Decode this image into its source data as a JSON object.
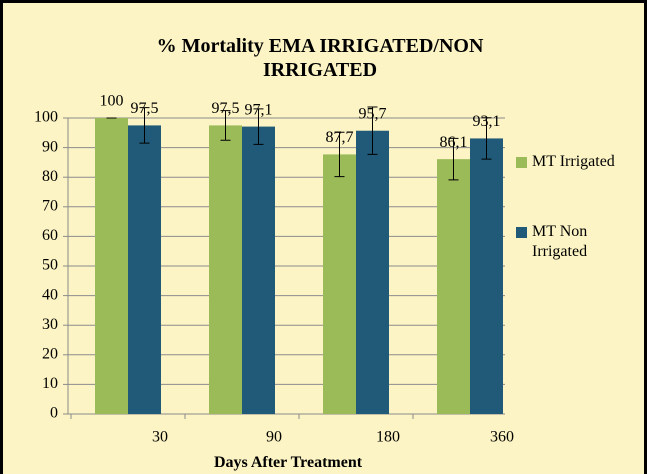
{
  "chart_data": {
    "type": "bar",
    "title": "% Mortality  EMA IRRIGATED/NON IRRIGATED",
    "x_label": "Days After Treatment",
    "categories": [
      "30",
      "90",
      "180",
      "360"
    ],
    "series": [
      {
        "name": "MT Irrigated",
        "color": "#9bbb59",
        "values": [
          100,
          97.5,
          87.7,
          86.1
        ],
        "value_labels": [
          "100",
          "97,5",
          "87,7",
          "86,1"
        ],
        "errors": [
          0,
          5,
          7.5,
          7
        ]
      },
      {
        "name": "MT Non Irrigated",
        "color": "#215a78",
        "values": [
          97.5,
          97.1,
          95.7,
          93.1
        ],
        "value_labels": [
          "97,5",
          "97,1",
          "95,7",
          "93,1"
        ],
        "errors": [
          6,
          6,
          8,
          7
        ]
      }
    ],
    "ylim": [
      0,
      100
    ],
    "yticks": [
      0,
      10,
      20,
      30,
      40,
      50,
      60,
      70,
      80,
      90,
      100
    ],
    "grid": true,
    "legend": "right"
  }
}
